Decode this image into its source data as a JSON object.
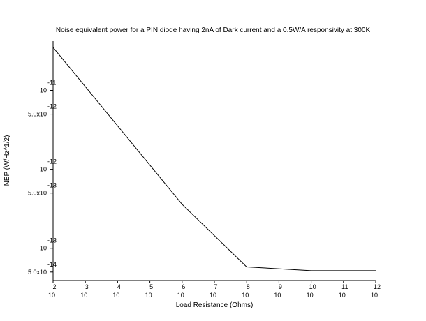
{
  "chart_data": {
    "type": "line",
    "title": "Noise equivalent power for a PIN diode having 2nA of Dark current and a 0.5W/A responsivity at 300K",
    "xlabel": "Load Resistance (Ohms)",
    "ylabel": "NEP  (W/Hz^1/2)",
    "x_scale": "log",
    "y_scale": "log",
    "xlim": [
      100,
      1000000000000
    ],
    "ylim": [
      3.9e-14,
      4.2e-11
    ],
    "grid": false,
    "x_ticks": [
      {
        "value": 100,
        "base": "10",
        "exp": "2"
      },
      {
        "value": 1000,
        "base": "10",
        "exp": "3"
      },
      {
        "value": 10000,
        "base": "10",
        "exp": "4"
      },
      {
        "value": 100000,
        "base": "10",
        "exp": "5"
      },
      {
        "value": 1000000,
        "base": "10",
        "exp": "6"
      },
      {
        "value": 10000000,
        "base": "10",
        "exp": "7"
      },
      {
        "value": 100000000,
        "base": "10",
        "exp": "8"
      },
      {
        "value": 1000000000,
        "base": "10",
        "exp": "9"
      },
      {
        "value": 10000000000,
        "base": "10",
        "exp": "10"
      },
      {
        "value": 100000000000,
        "base": "10",
        "exp": "11"
      },
      {
        "value": 1000000000000,
        "base": "10",
        "exp": "12"
      }
    ],
    "y_ticks": [
      {
        "value": 5e-14,
        "base": "5.0x10",
        "exp": "-14"
      },
      {
        "value": 1e-13,
        "base": "10",
        "exp": "-13"
      },
      {
        "value": 5e-13,
        "base": "5.0x10",
        "exp": "-13"
      },
      {
        "value": 1e-12,
        "base": "10",
        "exp": "-12"
      },
      {
        "value": 5e-12,
        "base": "5.0x10",
        "exp": "-12"
      },
      {
        "value": 1e-11,
        "base": "10",
        "exp": "-11"
      }
    ],
    "series": [
      {
        "x": [
          100,
          1000000,
          100000000,
          10000000000,
          1000000000000
        ],
        "y": [
          3.5e-11,
          3.6e-13,
          5.8e-14,
          5.2e-14,
          5.2e-14
        ]
      }
    ]
  }
}
